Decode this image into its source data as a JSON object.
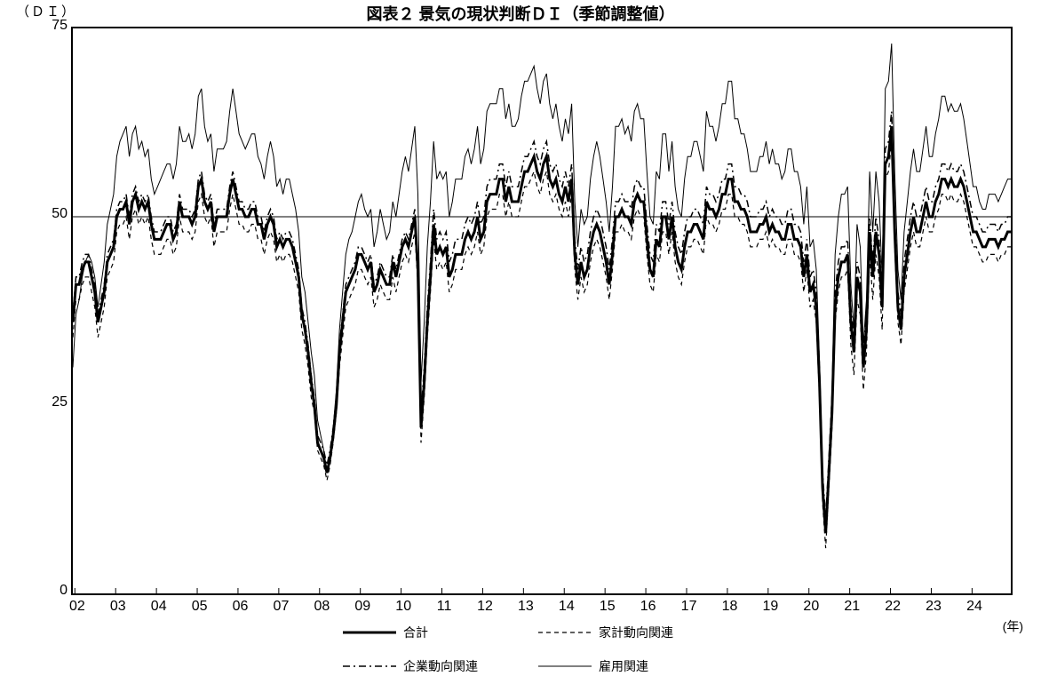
{
  "chart": {
    "type": "line",
    "title": "図表２ 景気の現状判断ＤＩ（季節調整値）",
    "y_axis_title": "（ＤＩ）",
    "x_axis_unit": "(年)",
    "ylim": [
      0,
      75
    ],
    "yticks": [
      0,
      25,
      50,
      75
    ],
    "xticks": [
      "02",
      "03",
      "04",
      "05",
      "06",
      "07",
      "08",
      "09",
      "10",
      "11",
      "12",
      "13",
      "14",
      "15",
      "16",
      "17",
      "18",
      "19",
      "20",
      "21",
      "22",
      "23",
      "24"
    ],
    "plot_background": "#ffffff",
    "axis_color": "#000000",
    "ref_line_y": 50,
    "ref_line_color": "#000000",
    "ref_line_width": 1,
    "series": [
      {
        "name": "合計",
        "legend_label": "合計",
        "color": "#000000",
        "stroke_width": 3,
        "dash": "",
        "data": [
          36,
          41,
          41,
          43,
          44,
          44,
          42,
          40,
          36,
          38,
          40,
          44,
          45,
          46,
          50,
          51,
          51,
          52,
          49,
          52,
          53,
          51,
          52,
          51,
          52,
          49,
          47,
          47,
          47,
          48,
          49,
          49,
          47,
          48,
          52,
          50,
          50,
          50,
          49,
          50,
          54,
          55,
          52,
          51,
          52,
          48,
          50,
          50,
          50,
          50,
          53,
          55,
          53,
          51,
          51,
          50,
          50,
          51,
          51,
          49,
          49,
          47,
          49,
          50,
          49,
          46,
          47,
          46,
          47,
          47,
          46,
          44,
          42,
          37,
          35,
          32,
          28,
          25,
          20,
          19,
          18,
          16,
          18,
          21,
          25,
          32,
          36,
          40,
          41,
          42,
          43,
          45,
          45,
          44,
          43,
          44,
          40,
          41,
          43,
          42,
          41,
          41,
          44,
          42,
          44,
          46,
          47,
          46,
          48,
          50,
          43,
          22,
          28,
          36,
          42,
          49,
          45,
          46,
          45,
          46,
          42,
          43,
          45,
          45,
          45,
          47,
          48,
          47,
          48,
          50,
          47,
          48,
          52,
          53,
          53,
          53,
          55,
          55,
          52,
          54,
          52,
          52,
          52,
          54,
          56,
          56,
          57,
          58,
          56,
          55,
          57,
          58,
          55,
          54,
          55,
          53,
          52,
          54,
          52,
          55,
          45,
          41,
          44,
          42,
          43,
          46,
          48,
          49,
          48,
          46,
          44,
          41,
          45,
          50,
          50,
          51,
          50,
          50,
          49,
          52,
          53,
          52,
          52,
          47,
          43,
          42,
          47,
          46,
          50,
          50,
          47,
          50,
          46,
          44,
          43,
          46,
          48,
          48,
          49,
          49,
          48,
          47,
          52,
          51,
          51,
          50,
          51,
          53,
          53,
          55,
          55,
          52,
          52,
          51,
          51,
          50,
          48,
          48,
          48,
          49,
          49,
          50,
          48,
          49,
          48,
          48,
          47,
          47,
          49,
          49,
          47,
          47,
          46,
          42,
          45,
          40,
          41,
          38,
          28,
          14,
          8,
          16,
          24,
          38,
          42,
          44,
          44,
          45,
          36,
          32,
          42,
          40,
          30,
          35,
          48,
          42,
          48,
          45,
          38,
          57,
          58,
          62,
          48,
          38,
          35,
          42,
          45,
          48,
          50,
          48,
          48,
          50,
          52,
          50,
          50,
          52,
          53,
          55,
          55,
          54,
          55,
          54,
          54,
          55,
          54,
          52,
          50,
          48,
          48,
          47,
          46,
          46,
          47,
          47,
          47,
          46,
          47,
          47,
          48,
          48
        ]
      },
      {
        "name": "家計動向関連",
        "legend_label": "家計動向関連",
        "color": "#000000",
        "stroke_width": 1.2,
        "dash": "5,4",
        "data": [
          34,
          39,
          39,
          41,
          42,
          42,
          40,
          38,
          34,
          36,
          38,
          42,
          43,
          44,
          48,
          49,
          49,
          50,
          47,
          50,
          51,
          49,
          50,
          49,
          50,
          47,
          45,
          45,
          45,
          46,
          47,
          47,
          45,
          46,
          50,
          48,
          48,
          48,
          47,
          48,
          52,
          53,
          50,
          49,
          50,
          46,
          48,
          48,
          48,
          48,
          51,
          53,
          51,
          49,
          49,
          48,
          48,
          49,
          49,
          47,
          47,
          45,
          47,
          48,
          47,
          44,
          45,
          44,
          45,
          45,
          44,
          42,
          40,
          35,
          33,
          30,
          26,
          24,
          19,
          18,
          17,
          15,
          17,
          20,
          24,
          30,
          34,
          38,
          39,
          40,
          41,
          43,
          43,
          42,
          41,
          42,
          38,
          39,
          41,
          40,
          39,
          39,
          42,
          40,
          42,
          44,
          45,
          44,
          46,
          48,
          41,
          20,
          26,
          34,
          40,
          47,
          43,
          44,
          43,
          44,
          40,
          41,
          43,
          43,
          43,
          45,
          46,
          45,
          46,
          48,
          45,
          46,
          50,
          51,
          51,
          51,
          53,
          53,
          50,
          52,
          50,
          50,
          50,
          52,
          54,
          54,
          55,
          56,
          54,
          53,
          55,
          56,
          53,
          52,
          53,
          51,
          50,
          52,
          50,
          53,
          43,
          39,
          42,
          40,
          41,
          44,
          46,
          47,
          46,
          44,
          42,
          39,
          43,
          48,
          48,
          49,
          48,
          48,
          47,
          50,
          51,
          50,
          50,
          45,
          41,
          40,
          45,
          44,
          48,
          48,
          45,
          48,
          44,
          42,
          41,
          44,
          46,
          46,
          47,
          47,
          46,
          45,
          50,
          49,
          49,
          48,
          49,
          51,
          51,
          53,
          53,
          50,
          50,
          49,
          49,
          48,
          46,
          46,
          46,
          47,
          47,
          48,
          46,
          47,
          46,
          46,
          45,
          45,
          47,
          47,
          45,
          45,
          44,
          40,
          43,
          38,
          39,
          36,
          26,
          12,
          6,
          14,
          22,
          36,
          40,
          42,
          42,
          43,
          33,
          29,
          39,
          37,
          27,
          32,
          45,
          39,
          45,
          42,
          35,
          55,
          56,
          60,
          46,
          36,
          33,
          40,
          43,
          46,
          48,
          46,
          46,
          48,
          50,
          48,
          48,
          50,
          51,
          53,
          53,
          52,
          53,
          52,
          52,
          53,
          52,
          50,
          48,
          46,
          46,
          45,
          44,
          44,
          45,
          45,
          45,
          44,
          45,
          45,
          46,
          46
        ]
      },
      {
        "name": "企業動向関連",
        "legend_label": "企業動向関連",
        "color": "#000000",
        "stroke_width": 1.5,
        "dash": "8,4,2,4",
        "data": [
          37,
          42,
          42,
          44,
          45,
          45,
          43,
          41,
          37,
          39,
          41,
          45,
          46,
          47,
          51,
          52,
          52,
          53,
          50,
          53,
          54,
          52,
          53,
          52,
          53,
          50,
          48,
          48,
          48,
          49,
          50,
          50,
          48,
          49,
          53,
          51,
          51,
          51,
          50,
          51,
          55,
          56,
          53,
          52,
          53,
          49,
          51,
          51,
          51,
          51,
          54,
          56,
          54,
          52,
          52,
          51,
          51,
          52,
          52,
          50,
          50,
          48,
          50,
          51,
          50,
          47,
          48,
          47,
          48,
          48,
          47,
          45,
          43,
          38,
          36,
          33,
          29,
          26,
          21,
          20,
          19,
          17,
          19,
          22,
          26,
          33,
          37,
          41,
          42,
          43,
          44,
          46,
          46,
          45,
          44,
          45,
          41,
          42,
          44,
          43,
          42,
          42,
          45,
          43,
          45,
          47,
          48,
          47,
          49,
          51,
          44,
          24,
          30,
          38,
          44,
          51,
          47,
          48,
          47,
          48,
          44,
          45,
          47,
          47,
          47,
          49,
          50,
          49,
          50,
          52,
          49,
          50,
          54,
          55,
          55,
          55,
          57,
          57,
          54,
          56,
          54,
          54,
          54,
          56,
          58,
          58,
          59,
          60,
          58,
          57,
          59,
          60,
          57,
          56,
          57,
          55,
          54,
          56,
          54,
          57,
          47,
          43,
          46,
          44,
          45,
          48,
          50,
          51,
          50,
          48,
          46,
          43,
          47,
          52,
          52,
          53,
          52,
          52,
          51,
          54,
          55,
          54,
          54,
          49,
          45,
          44,
          49,
          48,
          52,
          52,
          49,
          52,
          48,
          46,
          45,
          48,
          50,
          50,
          51,
          51,
          50,
          49,
          54,
          53,
          53,
          52,
          53,
          55,
          55,
          57,
          57,
          54,
          54,
          53,
          53,
          52,
          50,
          50,
          50,
          51,
          51,
          52,
          50,
          51,
          50,
          50,
          49,
          49,
          51,
          51,
          49,
          49,
          48,
          44,
          47,
          42,
          43,
          40,
          30,
          16,
          10,
          18,
          26,
          40,
          44,
          46,
          46,
          47,
          38,
          34,
          44,
          42,
          32,
          37,
          50,
          44,
          50,
          47,
          40,
          59,
          60,
          64,
          50,
          40,
          37,
          44,
          47,
          50,
          52,
          50,
          50,
          52,
          54,
          52,
          52,
          54,
          55,
          57,
          57,
          56,
          57,
          56,
          56,
          57,
          56,
          54,
          52,
          50,
          50,
          49,
          48,
          48,
          49,
          49,
          49,
          48,
          49,
          49,
          50,
          50
        ]
      },
      {
        "name": "雇用関連",
        "legend_label": "雇用関連",
        "color": "#000000",
        "stroke_width": 1,
        "dash": "",
        "data": [
          30,
          37,
          39,
          42,
          44,
          45,
          44,
          42,
          38,
          41,
          44,
          49,
          51,
          53,
          58,
          60,
          61,
          62,
          58,
          61,
          62,
          59,
          60,
          58,
          59,
          55,
          53,
          54,
          55,
          56,
          57,
          57,
          55,
          57,
          62,
          60,
          60,
          61,
          59,
          61,
          66,
          67,
          62,
          60,
          61,
          56,
          59,
          59,
          59,
          60,
          64,
          67,
          64,
          61,
          60,
          59,
          60,
          61,
          61,
          58,
          57,
          55,
          58,
          60,
          58,
          54,
          55,
          53,
          55,
          55,
          53,
          51,
          48,
          42,
          40,
          36,
          32,
          29,
          23,
          21,
          19,
          16,
          18,
          22,
          27,
          35,
          40,
          45,
          47,
          48,
          50,
          52,
          53,
          51,
          50,
          51,
          46,
          48,
          51,
          49,
          47,
          48,
          52,
          50,
          53,
          56,
          58,
          56,
          59,
          62,
          53,
          28,
          36,
          46,
          52,
          60,
          55,
          56,
          55,
          56,
          50,
          52,
          55,
          55,
          55,
          58,
          59,
          57,
          59,
          62,
          57,
          59,
          64,
          65,
          65,
          65,
          67,
          67,
          63,
          65,
          62,
          62,
          63,
          66,
          68,
          68,
          69,
          70,
          67,
          65,
          68,
          69,
          65,
          63,
          65,
          62,
          60,
          63,
          61,
          65,
          52,
          46,
          51,
          49,
          50,
          55,
          58,
          60,
          58,
          55,
          52,
          48,
          54,
          62,
          62,
          63,
          61,
          62,
          60,
          64,
          65,
          63,
          63,
          56,
          50,
          49,
          56,
          55,
          61,
          61,
          56,
          60,
          54,
          51,
          50,
          55,
          58,
          58,
          60,
          60,
          58,
          56,
          64,
          62,
          62,
          60,
          62,
          65,
          65,
          68,
          68,
          63,
          63,
          61,
          61,
          59,
          56,
          56,
          56,
          58,
          58,
          60,
          57,
          59,
          57,
          57,
          55,
          56,
          59,
          59,
          56,
          56,
          54,
          49,
          54,
          46,
          47,
          43,
          31,
          15,
          8,
          17,
          27,
          45,
          50,
          53,
          53,
          54,
          41,
          35,
          49,
          46,
          33,
          39,
          56,
          48,
          56,
          52,
          42,
          67,
          68,
          73,
          56,
          43,
          39,
          48,
          52,
          56,
          59,
          56,
          56,
          59,
          62,
          58,
          58,
          61,
          63,
          66,
          66,
          64,
          65,
          64,
          64,
          65,
          63,
          60,
          57,
          54,
          54,
          52,
          51,
          51,
          53,
          53,
          53,
          52,
          53,
          54,
          55,
          55
        ]
      }
    ],
    "title_fontsize": 18,
    "tick_fontsize": 16,
    "legend_fontsize": 14
  }
}
